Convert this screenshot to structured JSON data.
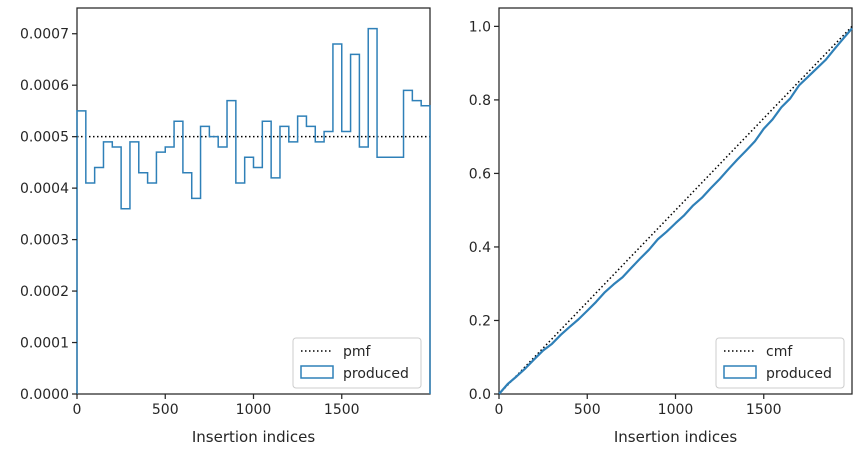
{
  "chart_data": [
    {
      "type": "histogram-step",
      "title": "",
      "xlabel": "Insertion indices",
      "ylabel": "",
      "xlim": [
        0,
        2000
      ],
      "ylim": [
        0,
        0.00075
      ],
      "xticks": [
        0,
        500,
        1000,
        1500
      ],
      "xtick_labels": [
        "0",
        "500",
        "1000",
        "1500"
      ],
      "yticks": [
        0,
        0.0001,
        0.0002,
        0.0003,
        0.0004,
        0.0005,
        0.0006,
        0.0007
      ],
      "ytick_labels": [
        "0.0000",
        "0.0001",
        "0.0002",
        "0.0003",
        "0.0004",
        "0.0005",
        "0.0006",
        "0.0007"
      ],
      "grid": false,
      "legend_position": "lower-right",
      "bin_edges": [
        0,
        50,
        100,
        150,
        200,
        250,
        300,
        350,
        400,
        450,
        500,
        550,
        600,
        650,
        700,
        750,
        800,
        850,
        900,
        950,
        1000,
        1050,
        1100,
        1150,
        1200,
        1250,
        1300,
        1350,
        1400,
        1450,
        1500,
        1550,
        1600,
        1650,
        1700,
        1750,
        1800,
        1850,
        1900,
        1950,
        2000
      ],
      "series": [
        {
          "name": "pmf",
          "kind": "reference-line",
          "style": "dotted",
          "color": "#000000",
          "value": 0.0005
        },
        {
          "name": "produced",
          "kind": "step",
          "color": "#2f80b8",
          "values": [
            0.00055,
            0.00041,
            0.00044,
            0.00049,
            0.00048,
            0.00036,
            0.00049,
            0.00043,
            0.00041,
            0.00047,
            0.00048,
            0.00053,
            0.00043,
            0.00038,
            0.00052,
            0.0005,
            0.00048,
            0.00057,
            0.00041,
            0.00046,
            0.00044,
            0.00053,
            0.00042,
            0.00052,
            0.00049,
            0.00054,
            0.00052,
            0.00049,
            0.00051,
            0.00068,
            0.00051,
            0.00066,
            0.00048,
            0.00071,
            0.00046,
            0.00046,
            0.00046,
            0.00059,
            0.00057,
            0.00056
          ]
        }
      ]
    },
    {
      "type": "line",
      "title": "",
      "xlabel": "Insertion indices",
      "ylabel": "",
      "xlim": [
        0,
        2000
      ],
      "ylim": [
        0,
        1.05
      ],
      "xticks": [
        0,
        500,
        1000,
        1500
      ],
      "xtick_labels": [
        "0",
        "500",
        "1000",
        "1500"
      ],
      "yticks": [
        0,
        0.2,
        0.4,
        0.6,
        0.8,
        1.0
      ],
      "ytick_labels": [
        "0.0",
        "0.2",
        "0.4",
        "0.6",
        "0.8",
        "1.0"
      ],
      "grid": false,
      "legend_position": "lower-right",
      "series": [
        {
          "name": "cmf",
          "kind": "reference-line",
          "style": "dotted",
          "color": "#000000",
          "x": [
            0,
            2000
          ],
          "y": [
            0,
            1.0
          ]
        },
        {
          "name": "produced",
          "kind": "cumulative",
          "color": "#2f80b8",
          "x": [
            0,
            50,
            100,
            150,
            200,
            250,
            300,
            350,
            400,
            450,
            500,
            550,
            600,
            650,
            700,
            750,
            800,
            850,
            900,
            950,
            1000,
            1050,
            1100,
            1150,
            1200,
            1250,
            1300,
            1350,
            1400,
            1450,
            1500,
            1550,
            1600,
            1650,
            1700,
            1750,
            1800,
            1850,
            1900,
            1950,
            2000
          ],
          "y": [
            0,
            0.0275,
            0.048,
            0.07,
            0.0945,
            0.1185,
            0.1365,
            0.161,
            0.1825,
            0.203,
            0.2265,
            0.2505,
            0.277,
            0.2985,
            0.3175,
            0.3435,
            0.3685,
            0.3925,
            0.421,
            0.4415,
            0.4645,
            0.4865,
            0.513,
            0.534,
            0.56,
            0.5845,
            0.6115,
            0.6375,
            0.662,
            0.6875,
            0.7215,
            0.747,
            0.78,
            0.804,
            0.8395,
            0.8625,
            0.8855,
            0.9085,
            0.938,
            0.9665,
            0.9945
          ]
        }
      ]
    }
  ]
}
